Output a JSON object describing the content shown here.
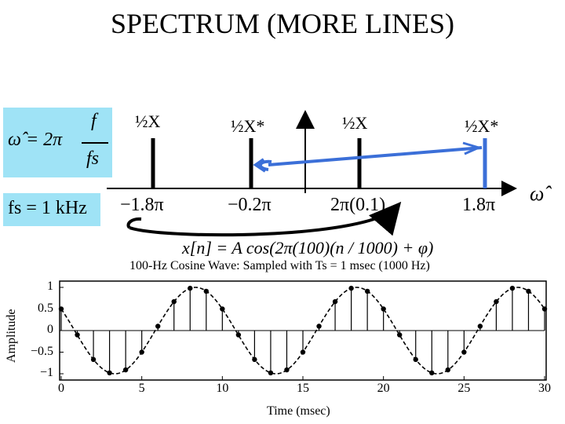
{
  "title": "SPECTRUM (MORE LINES)",
  "formulas": {
    "omega_hat": {
      "lhs": "ω̂ = 2π",
      "num": "f",
      "den": "fs"
    },
    "fs": "fs = 1 kHz",
    "signal": "x[n] = A cos(2π(100)(n / 1000) + φ)",
    "omega_axis": "ω̂"
  },
  "colors": {
    "formula_box": "#9fe3f6",
    "arrow": "#3b6fd8"
  },
  "spectrum": {
    "lines": [
      {
        "label": "−1.8π",
        "coef": "½X"
      },
      {
        "label": "−0.2π",
        "coef": "½X*"
      },
      {
        "label": "2π(0.1)",
        "coef": "½X"
      },
      {
        "label": "1.8π",
        "coef": "½X*"
      }
    ]
  },
  "chart_data": {
    "type": "line",
    "title": "100-Hz Cosine Wave: Sampled with Ts = 1 msec (1000 Hz)",
    "xlabel": "Time (msec)",
    "ylabel": "Amplitude",
    "xlim": [
      0,
      30
    ],
    "ylim": [
      -1,
      1
    ],
    "xticks": [
      "0",
      "5",
      "10",
      "15",
      "20",
      "25",
      "30"
    ],
    "yticks": [
      "1",
      "0.5",
      "0",
      "−0.5",
      "−1"
    ],
    "series": [
      {
        "style": "dashed continuous cosine",
        "x": [
          0,
          30
        ],
        "formula": "cos(2π·0.1·t + π/3)"
      },
      {
        "style": "stems with dots",
        "x": [
          0,
          1,
          2,
          3,
          4,
          5,
          6,
          7,
          8,
          9,
          10,
          11,
          12,
          13,
          14,
          15,
          16,
          17,
          18,
          19,
          20,
          21,
          22,
          23,
          24,
          25,
          26,
          27,
          28,
          29,
          30
        ],
        "values": [
          0.5,
          -0.1,
          -0.67,
          -0.98,
          -0.91,
          -0.5,
          0.1,
          0.67,
          0.98,
          0.91,
          0.5,
          -0.1,
          -0.67,
          -0.98,
          -0.91,
          -0.5,
          0.1,
          0.67,
          0.98,
          0.91,
          0.5,
          -0.1,
          -0.67,
          -0.98,
          -0.91,
          -0.5,
          0.1,
          0.67,
          0.98,
          0.91,
          0.5
        ]
      }
    ]
  }
}
